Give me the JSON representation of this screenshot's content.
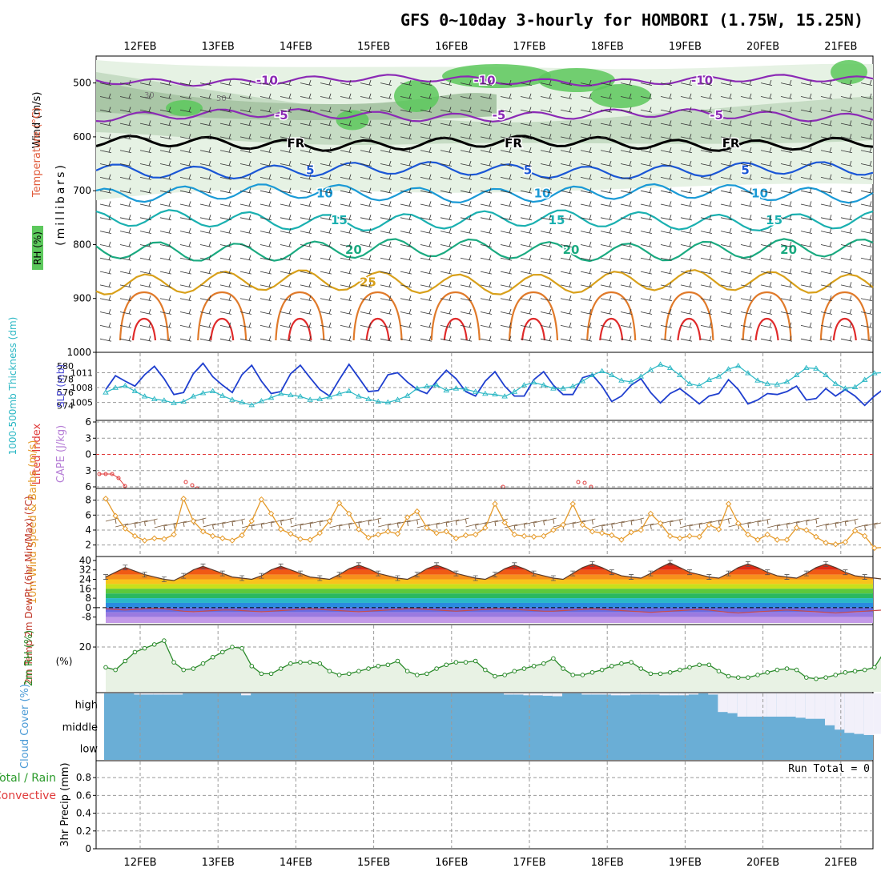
{
  "header": {
    "title": "GFS 0~10day 3-hourly for HOMBORI (1.75W, 15.25N)"
  },
  "dates": [
    "12FEB",
    "13FEB",
    "14FEB",
    "15FEB",
    "16FEB",
    "17FEB",
    "18FEB",
    "19FEB",
    "20FEB",
    "21FEB"
  ],
  "colors": {
    "slp": "#1f3fcf",
    "thickness": "#2ab7c4",
    "wind": "#e59a2a",
    "rh2m": "#2a8a2a",
    "lifted": "#e03a3a",
    "cape": "#b67ed6",
    "cloud": "#6aaed6",
    "cloud_clear": "#f2f0fa"
  },
  "chart_data": [
    {
      "id": "upper-air",
      "type": "contour",
      "title": "Upper-air cross section",
      "labels": {
        "wind": "Wind (m/s)",
        "temp": "Temperature (°C)",
        "rh": "RH (%)",
        "units": "(millibars)"
      },
      "yticks": [
        500,
        600,
        700,
        800,
        900,
        1000
      ],
      "ylim": [
        1000,
        450
      ],
      "temp_contours": [
        {
          "value": -10,
          "label": "-10",
          "color": "#8b2ab5",
          "mean": 495
        },
        {
          "value": -5,
          "label": "-5",
          "color": "#8b2ab5",
          "mean": 560
        },
        {
          "value": 0,
          "label": "FR",
          "color": "#000000",
          "mean": 612
        },
        {
          "value": 5,
          "label": "5",
          "color": "#1a56d6",
          "mean": 662
        },
        {
          "value": 10,
          "label": "10",
          "color": "#1a9ad6",
          "mean": 705
        },
        {
          "value": 15,
          "label": "15",
          "color": "#1ab0b0",
          "mean": 755
        },
        {
          "value": 20,
          "label": "20",
          "color": "#1aaa80",
          "mean": 810
        },
        {
          "value": 25,
          "label": "25",
          "color": "#d8a01a",
          "mean": 870
        }
      ],
      "rh_labels": [
        "30",
        "50"
      ]
    },
    {
      "id": "slp-thickness",
      "type": "line",
      "ylabel_left": "1000-500mb Thickness (dm)",
      "ylabel_right": "SLP (mb)",
      "thickness_ticks": [
        574,
        576,
        578,
        580
      ],
      "slp_ticks": [
        1005,
        1008,
        1011
      ],
      "series": [
        {
          "name": "SLP (mb)",
          "values": [
            1007.6,
            1010.4,
            1009.3,
            1008.3,
            1010.6,
            1012.3,
            1009.8,
            1006.6,
            1007.0,
            1010.8,
            1012.9,
            1010.2,
            1008.5,
            1007.0,
            1010.6,
            1012.5,
            1009.3,
            1006.8,
            1007.2,
            1010.8,
            1012.5,
            1010.0,
            1007.6,
            1006.3,
            1009.6,
            1012.7,
            1010.0,
            1007.2,
            1007.4,
            1010.6,
            1011.0,
            1009.1,
            1007.6,
            1006.8,
            1009.3,
            1011.5,
            1009.8,
            1007.2,
            1006.3,
            1009.3,
            1011.2,
            1008.3,
            1006.3,
            1006.3,
            1009.6,
            1011.2,
            1008.5,
            1006.6,
            1006.6,
            1010.0,
            1010.6,
            1008.3,
            1005.2,
            1006.3,
            1008.5,
            1009.8,
            1007.0,
            1004.9,
            1006.8,
            1007.8,
            1006.3,
            1004.7,
            1006.3,
            1006.8,
            1009.6,
            1007.6,
            1004.7,
            1005.5,
            1006.8,
            1006.6,
            1007.2,
            1008.3,
            1005.5,
            1005.8,
            1007.8,
            1006.3,
            1007.6,
            1006.3,
            1004.4,
            1006.3,
            1007.8,
            1007.0
          ]
        },
        {
          "name": "Thickness (dm)",
          "values": [
            576.0,
            576.7,
            577.0,
            576.2,
            575.4,
            575.0,
            574.8,
            574.4,
            574.6,
            575.4,
            575.9,
            576.2,
            575.5,
            574.9,
            574.5,
            574.1,
            574.7,
            575.2,
            575.8,
            575.6,
            575.4,
            574.9,
            575.0,
            575.3,
            575.8,
            576.2,
            575.4,
            575.0,
            574.6,
            574.5,
            574.9,
            575.5,
            576.6,
            576.9,
            577.1,
            576.3,
            576.6,
            576.5,
            576.1,
            575.8,
            575.7,
            575.4,
            576.1,
            577.1,
            577.5,
            577.1,
            576.6,
            576.6,
            576.9,
            577.7,
            578.6,
            579.2,
            578.6,
            577.8,
            577.6,
            578.4,
            579.4,
            580.2,
            579.7,
            578.6,
            577.3,
            577.0,
            577.9,
            578.4,
            579.5,
            580.0,
            578.9,
            577.8,
            577.3,
            577.2,
            577.6,
            578.6,
            579.7,
            579.6,
            578.6,
            577.3,
            576.6,
            576.8,
            577.9,
            578.9,
            579.0,
            577.5
          ]
        }
      ]
    },
    {
      "id": "lifted-cape",
      "type": "line",
      "ylabel_left": "Lifted Index",
      "ylabel_right": "CAPE (J/kg)",
      "yticks": [
        6,
        3,
        0,
        -3,
        -6
      ],
      "ylim": [
        6,
        -6
      ]
    },
    {
      "id": "wind10m",
      "type": "line",
      "ylabel": "10m Wind Speed & Barbs (m/s)",
      "yticks": [
        2,
        4,
        6,
        8
      ],
      "ylim": [
        0.8,
        8.8
      ],
      "series": [
        {
          "name": "10m Wind Speed (m/s)",
          "values": [
            8.2,
            5.9,
            4.2,
            3.2,
            2.6,
            2.9,
            2.8,
            3.4,
            8.2,
            5.2,
            3.8,
            3.2,
            2.9,
            2.6,
            3.3,
            5.2,
            8.1,
            6.2,
            4.1,
            3.5,
            2.8,
            2.7,
            3.6,
            5.2,
            7.6,
            6.2,
            4.1,
            3.0,
            3.4,
            3.8,
            3.5,
            5.7,
            6.5,
            4.3,
            3.6,
            3.8,
            2.9,
            3.3,
            3.4,
            4.3,
            7.5,
            5.0,
            3.4,
            3.2,
            3.1,
            3.2,
            4.0,
            4.7,
            7.5,
            4.7,
            3.8,
            3.6,
            3.3,
            2.7,
            3.7,
            4.0,
            6.2,
            4.9,
            3.2,
            2.9,
            3.2,
            3.1,
            4.7,
            4.1,
            7.5,
            4.9,
            3.4,
            2.7,
            3.4,
            2.7,
            2.7,
            4.3,
            4.0,
            3.1,
            2.3,
            2.1,
            2.4,
            3.9,
            3.2,
            1.6,
            1.7,
            2.2
          ]
        }
      ]
    },
    {
      "id": "temp2m",
      "type": "area",
      "ylabel": "2m Temp 2m DewPt (6hr Min/Max) (°C)",
      "yticks": [
        40,
        32,
        24,
        16,
        8,
        0,
        -8
      ],
      "ylim": [
        -13,
        42
      ],
      "series": [
        {
          "name": "2m Temp (°C)",
          "values": [
            26.0,
            30.0,
            34.0,
            31.0,
            28.0,
            26.0,
            24.0,
            23.0,
            27.0,
            32.0,
            35.0,
            32.0,
            29.0,
            26.0,
            25.0,
            24.0,
            27.0,
            32.0,
            35.0,
            32.0,
            29.0,
            26.0,
            25.0,
            24.0,
            28.0,
            33.0,
            36.0,
            33.0,
            29.0,
            27.0,
            25.0,
            24.0,
            28.0,
            33.0,
            36.0,
            33.0,
            29.0,
            27.0,
            25.0,
            24.0,
            28.0,
            33.0,
            36.0,
            33.0,
            29.0,
            27.0,
            25.0,
            24.0,
            29.0,
            34.0,
            37.0,
            34.0,
            30.0,
            27.0,
            26.0,
            25.0,
            29.0,
            34.0,
            38.0,
            34.0,
            30.0,
            28.0,
            26.0,
            25.0,
            29.0,
            34.0,
            37.0,
            34.0,
            30.0,
            27.0,
            26.0,
            25.0,
            29.0,
            34.0,
            37.0,
            34.0,
            30.0,
            27.0,
            26.0,
            25.0,
            24.0,
            23.0
          ]
        },
        {
          "name": "2m DewPt (°C)",
          "values": [
            -1.0,
            -1.5,
            -2.0,
            -1.5,
            -1.0,
            -0.5,
            -1.0,
            -2.0,
            -3.0,
            -3.5,
            -3.0,
            -2.5,
            -2.0,
            -2.0,
            -2.5,
            -3.0,
            -3.5,
            -3.0,
            -2.5,
            -2.0,
            -1.5,
            -1.0,
            -1.5,
            -2.0,
            -2.5,
            -3.0,
            -3.5,
            -3.0,
            -2.5,
            -2.0,
            -1.5,
            -1.0,
            -1.0,
            -1.5,
            -2.0,
            -2.5,
            -3.0,
            -2.5,
            -2.0,
            -1.5,
            -1.0,
            -1.0,
            -1.5,
            -2.0,
            -2.5,
            -3.0,
            -3.0,
            -2.5,
            -2.0,
            -1.5,
            -1.0,
            -1.5,
            -2.0,
            -2.5,
            -3.0,
            -3.5,
            -4.0,
            -3.5,
            -3.0,
            -2.5,
            -2.0,
            -1.5,
            -2.0,
            -3.0,
            -4.0,
            -4.5,
            -4.0,
            -3.5,
            -3.0,
            -2.5,
            -2.0,
            -2.5,
            -3.0,
            -3.5,
            -4.0,
            -4.5,
            -4.0,
            -3.5,
            -3.0,
            -2.5,
            -2.0,
            -1.5
          ]
        }
      ]
    },
    {
      "id": "rh2m",
      "type": "line",
      "ylabel": "2m RH (%)",
      "yticks": [
        20
      ],
      "ylim": [
        3,
        26
      ],
      "series": [
        {
          "name": "2m RH (%)",
          "values": [
            12.0,
            11.0,
            14.5,
            18.0,
            19.5,
            21.0,
            22.5,
            14.0,
            11.0,
            11.5,
            13.5,
            16.0,
            18.0,
            20.0,
            19.5,
            12.5,
            9.5,
            9.5,
            11.5,
            13.5,
            14.0,
            14.0,
            13.5,
            10.5,
            9.0,
            9.5,
            10.5,
            11.5,
            12.5,
            13.0,
            14.5,
            10.5,
            9.0,
            9.5,
            11.5,
            13.0,
            14.0,
            14.0,
            14.5,
            11.0,
            8.5,
            9.0,
            10.5,
            11.5,
            12.5,
            13.5,
            15.5,
            11.5,
            9.0,
            9.0,
            10.0,
            11.0,
            12.5,
            13.5,
            14.0,
            11.5,
            9.5,
            9.5,
            10.0,
            11.0,
            12.0,
            13.0,
            13.0,
            10.5,
            8.5,
            8.0,
            8.0,
            9.0,
            10.0,
            11.0,
            11.5,
            11.0,
            8.0,
            7.5,
            8.0,
            9.0,
            10.0,
            10.5,
            11.0,
            12.0,
            18.0,
            20.0
          ]
        }
      ]
    },
    {
      "id": "cloud",
      "type": "heatmap",
      "ylabel": "Cloud Cover (%)",
      "rows": [
        "high",
        "middle",
        "low"
      ],
      "high": [
        0,
        0,
        0,
        5,
        5,
        5,
        5,
        5,
        0,
        0,
        0,
        0,
        0,
        0,
        8,
        0,
        0,
        0,
        0,
        0,
        0,
        0,
        0,
        0,
        0,
        0,
        0,
        0,
        0,
        0,
        0,
        0,
        0,
        0,
        0,
        0,
        0,
        0,
        0,
        0,
        0,
        5,
        5,
        8,
        8,
        10,
        12,
        0,
        0,
        5,
        5,
        5,
        8,
        8,
        5,
        5,
        5,
        8,
        8,
        8,
        5,
        0,
        5,
        80,
        85,
        100,
        100,
        100,
        100,
        100,
        100,
        100,
        100,
        100,
        100,
        100,
        100,
        100,
        100,
        100,
        100,
        100
      ],
      "middle": [
        0,
        0,
        0,
        0,
        0,
        0,
        0,
        0,
        0,
        0,
        0,
        0,
        0,
        0,
        0,
        0,
        0,
        0,
        0,
        0,
        0,
        0,
        0,
        0,
        0,
        0,
        0,
        0,
        0,
        0,
        0,
        0,
        0,
        0,
        0,
        0,
        0,
        0,
        0,
        0,
        0,
        0,
        0,
        0,
        0,
        0,
        0,
        0,
        0,
        0,
        0,
        0,
        0,
        0,
        0,
        0,
        0,
        0,
        0,
        0,
        0,
        0,
        0,
        0,
        0,
        0,
        0,
        0,
        0,
        0,
        0,
        5,
        10,
        10,
        40,
        60,
        75,
        80,
        85,
        80,
        70,
        80
      ],
      "low": [
        0,
        0,
        0,
        0,
        0,
        0,
        0,
        0,
        0,
        0,
        0,
        0,
        0,
        0,
        0,
        0,
        0,
        0,
        0,
        0,
        0,
        0,
        0,
        0,
        0,
        0,
        0,
        0,
        0,
        0,
        0,
        0,
        0,
        0,
        0,
        0,
        0,
        0,
        0,
        0,
        0,
        0,
        0,
        0,
        0,
        0,
        0,
        0,
        0,
        0,
        0,
        0,
        0,
        0,
        0,
        0,
        0,
        0,
        0,
        0,
        0,
        0,
        0,
        0,
        0,
        0,
        0,
        0,
        0,
        0,
        0,
        0,
        0,
        0,
        0,
        0,
        0,
        0,
        0,
        0,
        0,
        0
      ]
    },
    {
      "id": "precip",
      "type": "bar",
      "ylabel": "3hr Precip (mm)",
      "legend": [
        "Total / Rain",
        "Convective"
      ],
      "yticks": [
        0,
        0.2,
        0.4,
        0.6,
        0.8
      ],
      "ylim": [
        0,
        0.9
      ],
      "annotation": "Run Total = 0",
      "values": []
    }
  ]
}
